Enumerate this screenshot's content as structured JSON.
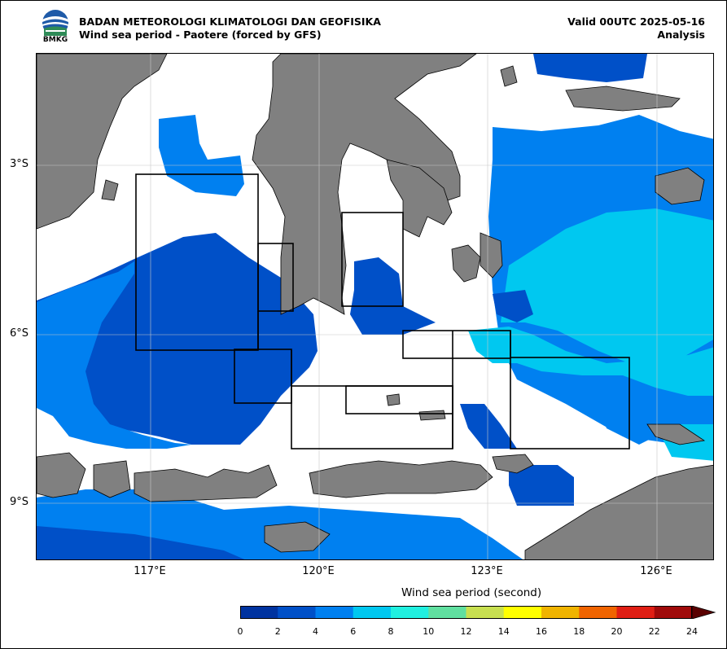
{
  "header": {
    "agency": "BADAN METEOROLOGI KLIMATOLOGI DAN GEOFISIKA",
    "product": "Wind sea period - Paotere (forced by GFS)",
    "valid": "Valid 00UTC 2025-05-16",
    "mode": "Analysis",
    "logo_text": "BMKG"
  },
  "map": {
    "lat_labels": [
      "3°S",
      "6°S",
      "9°S"
    ],
    "lon_labels": [
      "117°E",
      "120°E",
      "123°E",
      "126°E"
    ],
    "land_color": "#808080",
    "grid": true
  },
  "colorbar": {
    "title": "Wind sea period (second)",
    "ticks": [
      "0",
      "2",
      "4",
      "6",
      "8",
      "10",
      "12",
      "14",
      "16",
      "18",
      "20",
      "22",
      "24"
    ],
    "colors": [
      "#0033a0",
      "#0050c8",
      "#0080f0",
      "#00c8f0",
      "#20f0e0",
      "#60e0a0",
      "#c8e050",
      "#ffff00",
      "#f0b400",
      "#f06400",
      "#e01e14",
      "#a00a0a"
    ],
    "extend_color": "#5a0000"
  }
}
